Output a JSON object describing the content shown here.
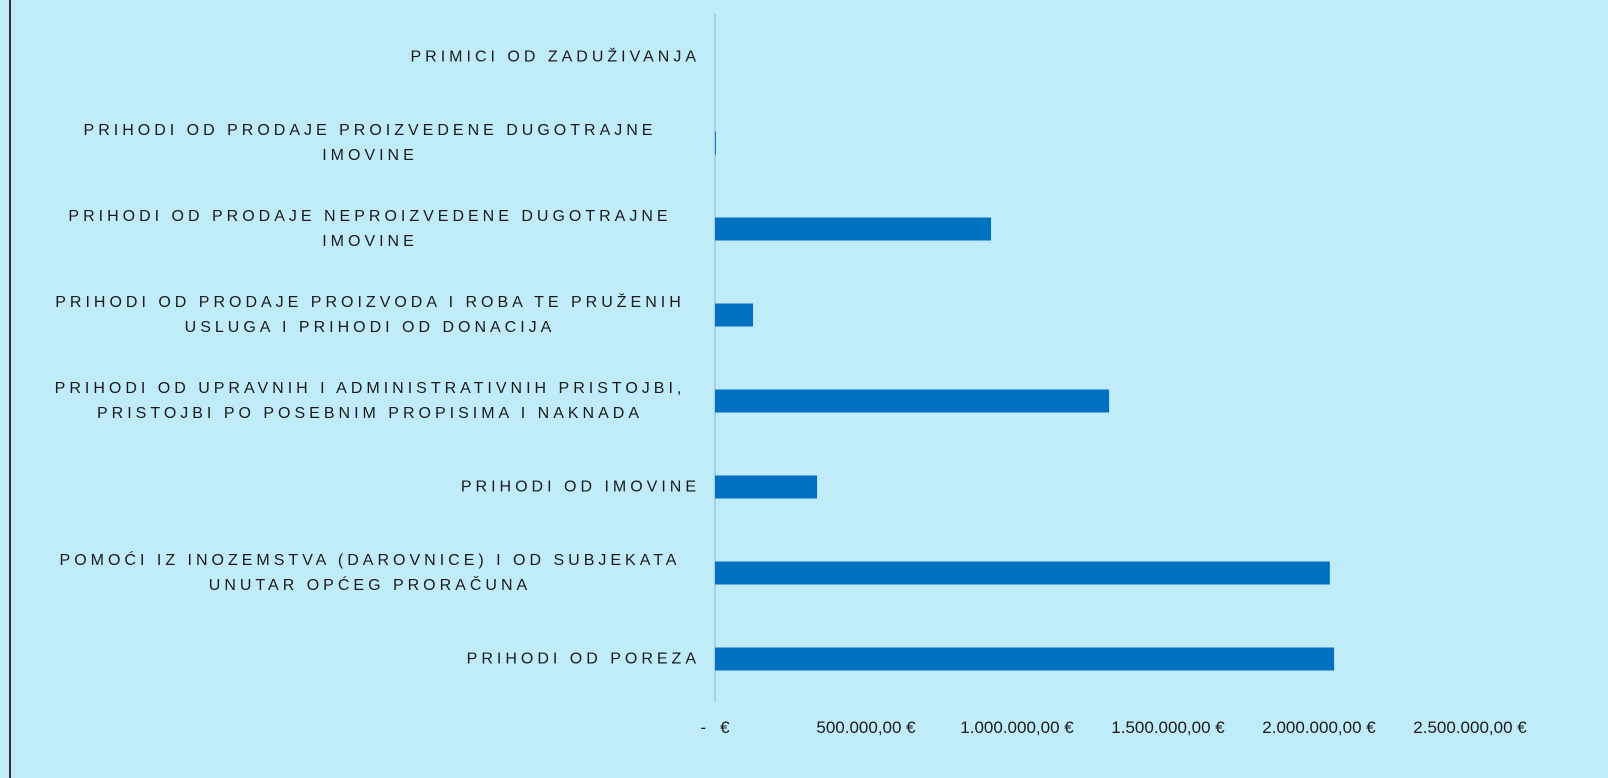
{
  "chart_data": {
    "type": "bar",
    "orientation": "horizontal",
    "categories": [
      "PRIMICI OD ZADUŽIVANJA",
      "PRIHODI OD PRODAJE PROIZVEDENE DUGOTRAJNE IMOVINE",
      "PRIHODI OD PRODAJE NEPROIZVEDENE DUGOTRAJNE IMOVINE",
      "PRIHODI OD PRODAJE PROIZVODA I ROBA TE PRUŽENIH USLUGA I PRIHODI OD DONACIJA",
      "PRIHODI OD UPRAVNIH I ADMINISTRATIVNIH PRISTOJBI, PRISTOJBI PO POSEBNIM PROPISIMA I NAKNADA",
      "PRIHODI OD IMOVINE",
      "POMOĆI IZ INOZEMSTVA (DAROVNICE) I OD SUBJEKATA UNUTAR OPĆEG PRORAČUNA",
      "PRIHODI OD POREZA"
    ],
    "values": [
      0,
      3000,
      914000,
      126000,
      1305000,
      338000,
      2036000,
      2050000
    ],
    "color": "#0070c0",
    "xlim": [
      0,
      2500000
    ],
    "xticks": [
      {
        "value": 0,
        "label": "-   €"
      },
      {
        "value": 500000,
        "label": "500.000,00 €"
      },
      {
        "value": 1000000,
        "label": "1.000.000,00 €"
      },
      {
        "value": 1500000,
        "label": "1.500.000,00 €"
      },
      {
        "value": 2000000,
        "label": "2.000.000,00 €"
      },
      {
        "value": 2500000,
        "label": "2.500.000,00 €"
      }
    ]
  }
}
